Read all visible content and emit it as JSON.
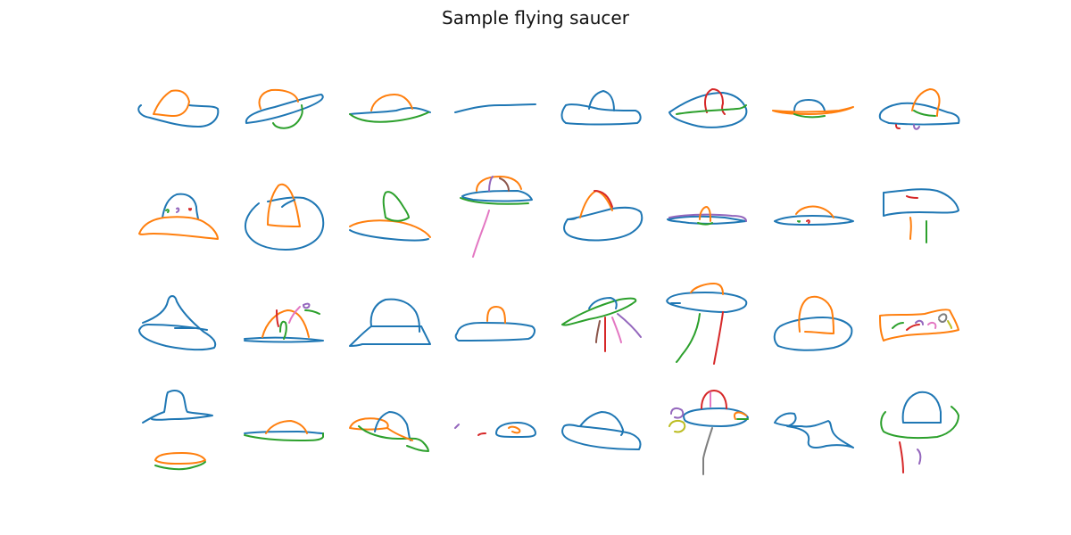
{
  "title": "Sample flying saucer",
  "grid": {
    "rows": 4,
    "cols": 8,
    "count": 32
  },
  "stroke_colors": {
    "blue": "#1f77b4",
    "orange": "#ff7f0e",
    "green": "#2ca02c",
    "red": "#d62728",
    "purple": "#9467bd",
    "brown": "#8c564b",
    "pink": "#e377c2",
    "gray": "#7f7f7f",
    "olive": "#bcbd22"
  }
}
